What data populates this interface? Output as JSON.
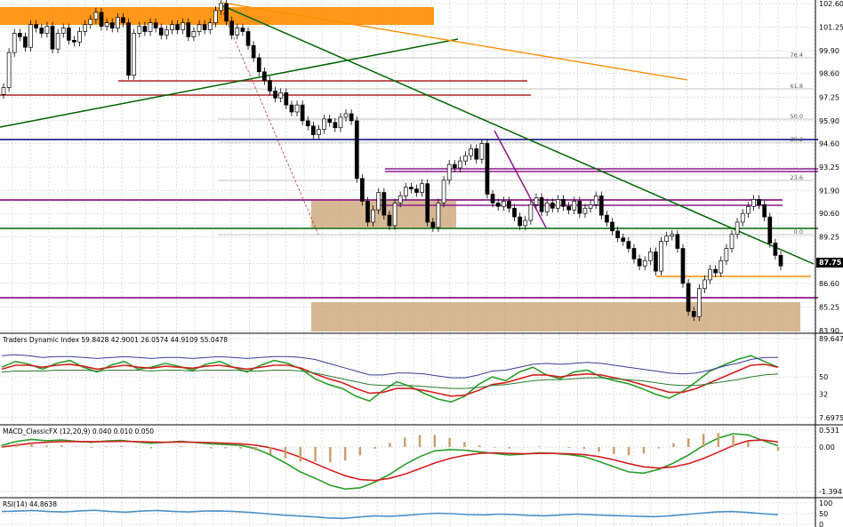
{
  "chart_data": [
    {
      "type": "candlestick",
      "panel": "price",
      "ylim": [
        83.9,
        102.6
      ],
      "y_ticks": [
        "102.60",
        "101.25",
        "99.90",
        "98.60",
        "97.25",
        "95.90",
        "94.60",
        "93.25",
        "91.90",
        "90.60",
        "89.25",
        "87.75",
        "86.60",
        "85.25",
        "83.90"
      ],
      "last_price": "87.75",
      "fib_labels": [
        "76.4",
        "61.8",
        "50.0",
        "38.2",
        "23.6",
        "0.0"
      ],
      "close": [
        97.8,
        99.8,
        100.9,
        100.7,
        100.1,
        101.4,
        101.2,
        100.9,
        101.3,
        100.0,
        100.9,
        101.2,
        100.5,
        100.4,
        101.0,
        101.4,
        101.7,
        102.1,
        101.3,
        101.5,
        101.2,
        101.8,
        101.5,
        98.5,
        100.9,
        101.3,
        101.0,
        101.5,
        101.2,
        100.8,
        101.1,
        101.4,
        101.1,
        101.5,
        100.7,
        101.0,
        101.4,
        101.1,
        101.5,
        102.2,
        102.6,
        101.6,
        100.8,
        101.2,
        101.0,
        100.2,
        99.5,
        98.7,
        98.2,
        97.6,
        97.2,
        97.5,
        96.8,
        96.4,
        96.8,
        95.9,
        95.6,
        95.1,
        95.4,
        96.0,
        95.8,
        95.5,
        96.1,
        96.3,
        95.9,
        92.6,
        91.3,
        90.1,
        90.8,
        91.8,
        90.5,
        89.9,
        91.2,
        91.6,
        92.1,
        92.0,
        91.8,
        92.3,
        90.1,
        89.8,
        91.2,
        92.5,
        93.4,
        93.2,
        93.6,
        93.9,
        94.3,
        93.7,
        94.6,
        91.7,
        91.2,
        91.0,
        91.3,
        90.9,
        90.4,
        89.9,
        90.2,
        91.1,
        91.5,
        90.7,
        91.2,
        90.9,
        91.4,
        91.0,
        90.8,
        91.3,
        90.6,
        90.9,
        91.1,
        91.6,
        90.5,
        90.1,
        89.6,
        89.2,
        89.0,
        88.6,
        88.0,
        87.6,
        87.9,
        88.4,
        87.3,
        89.0,
        89.3,
        89.4,
        88.6,
        86.6,
        85.0,
        84.7,
        86.3,
        86.8,
        87.4,
        87.2,
        87.9,
        88.6,
        89.4,
        90.1,
        90.6,
        91.0,
        91.4,
        91.1,
        90.4,
        88.9,
        88.2,
        87.6
      ],
      "title": "",
      "xlabel": "",
      "ylabel": ""
    },
    {
      "type": "line",
      "panel": "indicator",
      "title": "Traders Dynamic Index 59.8428 42.9001 26.0574 44.9109 55.0478",
      "y_ticks": [
        "89.6472",
        "50",
        "32",
        "7.6975"
      ],
      "ylim": [
        7.6975,
        89.6472
      ],
      "series": [
        {
          "name": "",
          "color": "#2a9d2a",
          "values": [
            60,
            66,
            63,
            58,
            64,
            67,
            60,
            55,
            62,
            66,
            58,
            60,
            64,
            61,
            57,
            63,
            66,
            60,
            55,
            62,
            67,
            64,
            58,
            48,
            42,
            38,
            30,
            25,
            36,
            45,
            40,
            33,
            27,
            24,
            30,
            42,
            50,
            46,
            55,
            60,
            52,
            48,
            55,
            57,
            50,
            46,
            43,
            38,
            32,
            28,
            35,
            45,
            56,
            62,
            68,
            72,
            66,
            60
          ]
        },
        {
          "name": "",
          "color": "#d32020",
          "values": [
            58,
            62,
            62,
            60,
            62,
            63,
            61,
            58,
            60,
            62,
            60,
            59,
            61,
            60,
            59,
            61,
            62,
            60,
            58,
            60,
            62,
            62,
            59,
            53,
            48,
            44,
            38,
            33,
            34,
            38,
            38,
            36,
            33,
            30,
            31,
            36,
            42,
            44,
            48,
            52,
            52,
            50,
            52,
            53,
            52,
            49,
            46,
            42,
            38,
            34,
            34,
            38,
            44,
            50,
            56,
            62,
            63,
            60
          ]
        },
        {
          "name": "",
          "color": "#2a7a2a",
          "values": [
            55,
            56,
            56,
            56,
            57,
            57,
            57,
            56,
            57,
            57,
            57,
            56,
            57,
            57,
            56,
            57,
            57,
            57,
            56,
            56,
            57,
            57,
            56,
            54,
            51,
            48,
            45,
            42,
            41,
            41,
            41,
            40,
            39,
            38,
            38,
            39,
            41,
            42,
            44,
            46,
            47,
            47,
            48,
            49,
            49,
            48,
            47,
            46,
            44,
            42,
            41,
            41,
            43,
            45,
            47,
            50,
            52,
            53
          ]
        },
        {
          "name": "",
          "color": "#3a3a9a",
          "values": [
            72,
            73,
            72,
            70,
            71,
            71,
            70,
            69,
            70,
            71,
            70,
            69,
            70,
            70,
            69,
            70,
            71,
            70,
            69,
            70,
            71,
            71,
            70,
            68,
            64,
            60,
            56,
            52,
            52,
            54,
            54,
            53,
            51,
            49,
            49,
            52,
            56,
            57,
            60,
            63,
            64,
            63,
            64,
            65,
            64,
            62,
            60,
            58,
            56,
            54,
            53,
            54,
            57,
            61,
            64,
            68,
            70,
            70
          ]
        }
      ]
    },
    {
      "type": "bar+line",
      "panel": "macd",
      "title": "MACD_ClassicFX (12,20,9) 0.040 0.010 0.050",
      "y_ticks": [
        "0.531",
        "0.00",
        "-1.394"
      ],
      "ylim": [
        -1.394,
        0.531
      ],
      "series": [
        {
          "name": "",
          "color": "#2a9d2a",
          "values": [
            0.05,
            0.18,
            0.24,
            0.2,
            0.22,
            0.18,
            0.15,
            0.19,
            0.21,
            0.16,
            0.12,
            0.15,
            0.18,
            0.14,
            0.1,
            0.08,
            0.05,
            -0.05,
            -0.25,
            -0.5,
            -0.78,
            -0.98,
            -1.2,
            -1.32,
            -1.28,
            -1.1,
            -0.85,
            -0.55,
            -0.3,
            -0.12,
            -0.08,
            -0.1,
            -0.15,
            -0.2,
            -0.25,
            -0.22,
            -0.18,
            -0.2,
            -0.24,
            -0.3,
            -0.45,
            -0.62,
            -0.78,
            -0.82,
            -0.7,
            -0.5,
            -0.25,
            0.05,
            0.28,
            0.42,
            0.38,
            0.2,
            0.04
          ]
        },
        {
          "name": "",
          "color": "#d32020",
          "values": [
            0.0,
            0.06,
            0.12,
            0.15,
            0.17,
            0.17,
            0.17,
            0.17,
            0.18,
            0.17,
            0.16,
            0.15,
            0.16,
            0.15,
            0.14,
            0.12,
            0.1,
            0.06,
            -0.02,
            -0.15,
            -0.32,
            -0.52,
            -0.72,
            -0.9,
            -1.02,
            -1.05,
            -0.98,
            -0.85,
            -0.68,
            -0.5,
            -0.36,
            -0.26,
            -0.2,
            -0.18,
            -0.2,
            -0.21,
            -0.2,
            -0.2,
            -0.21,
            -0.24,
            -0.3,
            -0.4,
            -0.52,
            -0.62,
            -0.66,
            -0.62,
            -0.52,
            -0.36,
            -0.16,
            0.05,
            0.2,
            0.22,
            0.16
          ]
        },
        {
          "name": "",
          "color": "#c8a070",
          "values": [
            0.05,
            0.12,
            0.12,
            0.05,
            0.05,
            0.01,
            -0.02,
            0.02,
            0.03,
            -0.01,
            -0.04,
            0.0,
            0.02,
            -0.01,
            -0.04,
            -0.04,
            -0.05,
            -0.11,
            -0.23,
            -0.35,
            -0.46,
            -0.46,
            -0.48,
            -0.42,
            -0.26,
            -0.05,
            0.13,
            0.3,
            0.38,
            0.38,
            0.28,
            0.16,
            0.05,
            -0.02,
            -0.05,
            -0.01,
            0.02,
            0.0,
            -0.03,
            -0.06,
            -0.15,
            -0.22,
            -0.26,
            -0.2,
            -0.04,
            0.12,
            0.27,
            0.41,
            0.44,
            0.37,
            0.18,
            -0.02,
            -0.12
          ]
        }
      ]
    },
    {
      "type": "line",
      "panel": "rsi",
      "title": "RSI(14) 44.8638",
      "y_ticks": [
        "100",
        "50",
        "0"
      ],
      "ylim": [
        0,
        100
      ],
      "series": [
        {
          "name": "",
          "color": "#4a90c8",
          "values": [
            60,
            62,
            65,
            60,
            58,
            63,
            66,
            60,
            57,
            62,
            65,
            61,
            58,
            62,
            63,
            60,
            56,
            50,
            44,
            40,
            36,
            30,
            28,
            34,
            40,
            38,
            42,
            48,
            52,
            50,
            46,
            44,
            48,
            46,
            42,
            40,
            44,
            48,
            45,
            42,
            40,
            38,
            36,
            40,
            46,
            52,
            58,
            60,
            56,
            50,
            45
          ]
        }
      ]
    }
  ]
}
